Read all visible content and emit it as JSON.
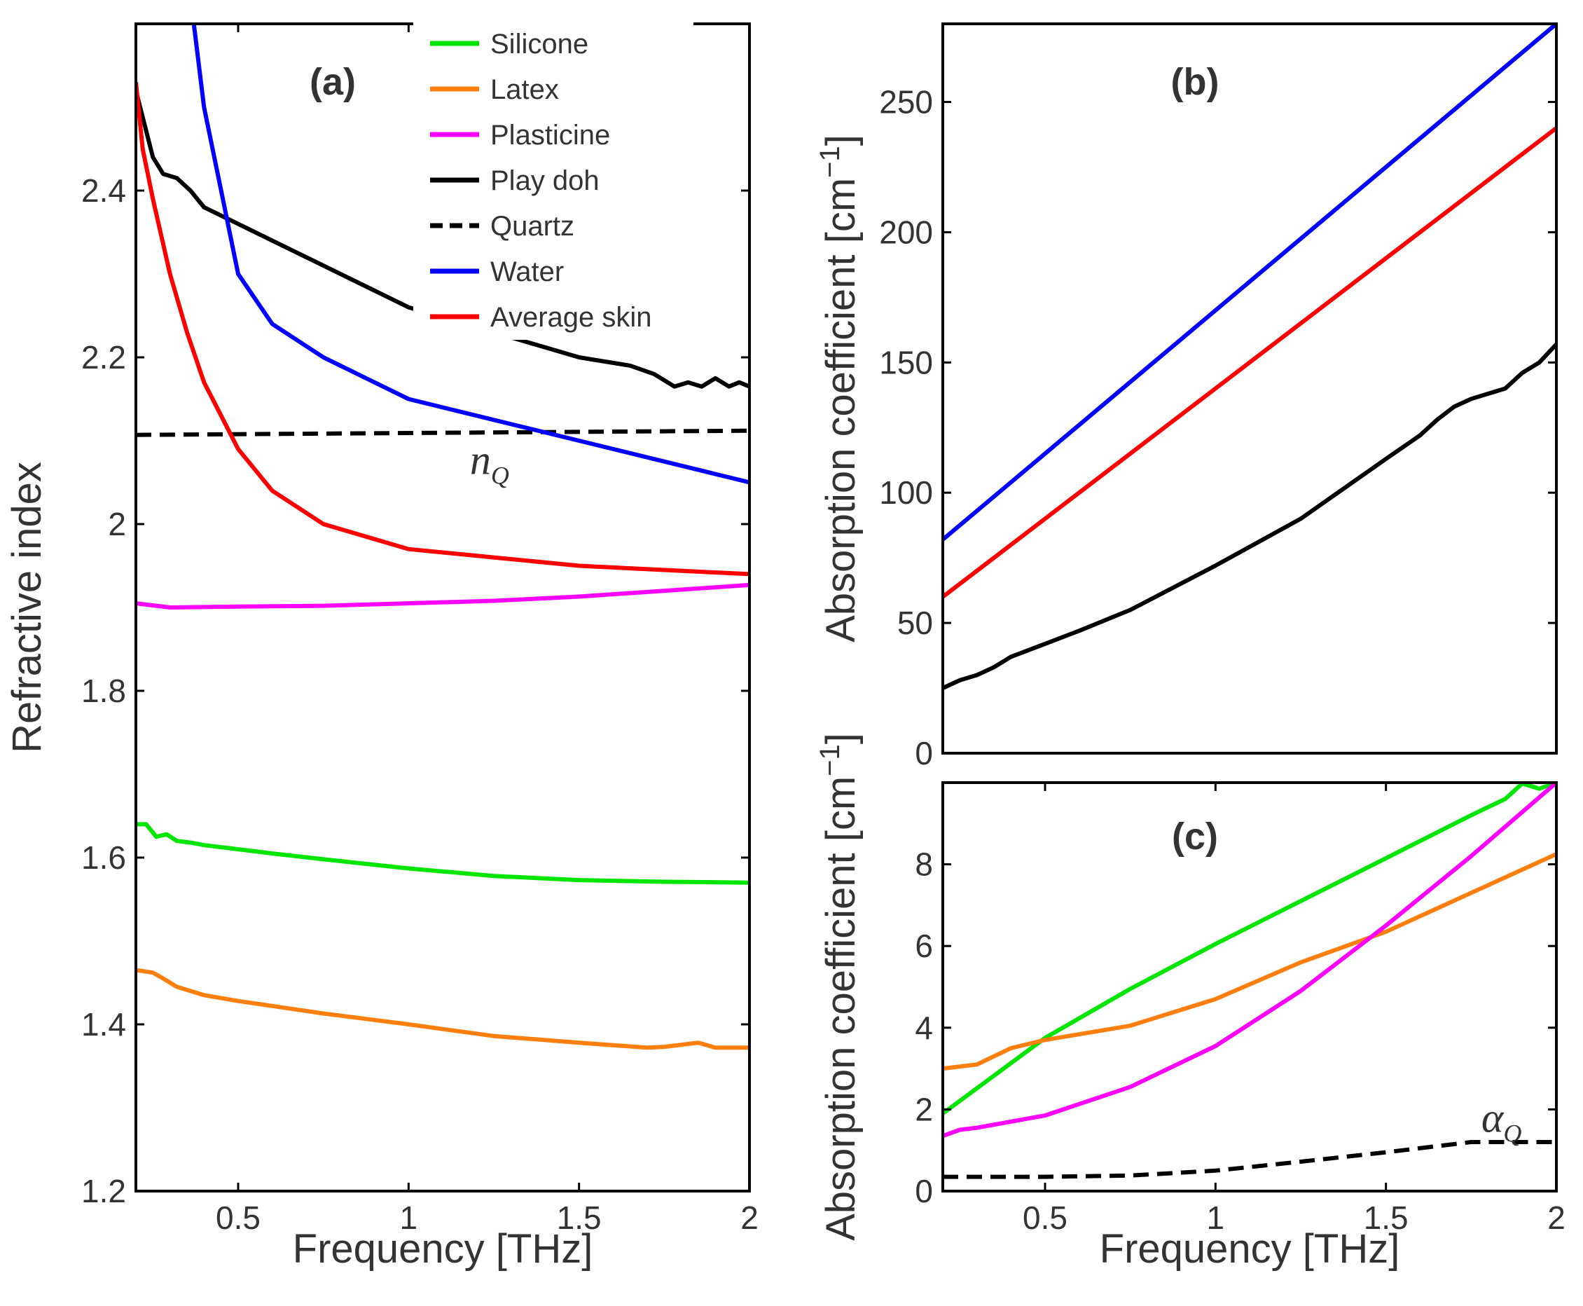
{
  "chart_data": [
    {
      "id": "a",
      "type": "line",
      "title": "(a)",
      "xlabel": "Frequency [THz]",
      "ylabel": "Refractive index",
      "xlim": [
        0.2,
        2.0
      ],
      "ylim": [
        1.2,
        2.6
      ],
      "xticks": [
        "0.5",
        "1",
        "1.5",
        "2"
      ],
      "yticks": [
        "1.2",
        "1.4",
        "1.6",
        "1.8",
        "2",
        "2.2",
        "2.4"
      ],
      "legend": {
        "position": "top-right",
        "entries": [
          "Silicone",
          "Latex",
          "Plasticine",
          "Play doh",
          "Quartz",
          "Water",
          "Average skin"
        ]
      },
      "annotation": {
        "text": "n",
        "subscript": "Q",
        "x": 1.18,
        "y": 2.06
      },
      "series": [
        {
          "name": "Silicone",
          "color": "#00e600",
          "dash": false,
          "x": [
            0.2,
            0.23,
            0.26,
            0.29,
            0.32,
            0.36,
            0.4,
            0.5,
            0.6,
            0.75,
            1.0,
            1.25,
            1.5,
            1.75,
            2.0
          ],
          "y": [
            1.64,
            1.64,
            1.625,
            1.628,
            1.62,
            1.618,
            1.615,
            1.61,
            1.605,
            1.598,
            1.587,
            1.578,
            1.573,
            1.571,
            1.57
          ]
        },
        {
          "name": "Latex",
          "color": "#ff7f0e",
          "dash": false,
          "x": [
            0.2,
            0.25,
            0.28,
            0.32,
            0.36,
            0.4,
            0.5,
            0.6,
            0.75,
            1.0,
            1.25,
            1.5,
            1.7,
            1.75,
            1.85,
            1.9,
            2.0
          ],
          "y": [
            1.465,
            1.462,
            1.455,
            1.445,
            1.44,
            1.435,
            1.428,
            1.422,
            1.413,
            1.4,
            1.386,
            1.378,
            1.372,
            1.373,
            1.378,
            1.372,
            1.372
          ]
        },
        {
          "name": "Plasticine",
          "color": "#ff00ff",
          "dash": false,
          "x": [
            0.2,
            0.3,
            0.5,
            0.75,
            1.0,
            1.25,
            1.5,
            1.75,
            2.0
          ],
          "y": [
            1.905,
            1.9,
            1.901,
            1.902,
            1.905,
            1.908,
            1.913,
            1.92,
            1.927
          ]
        },
        {
          "name": "Play doh",
          "color": "#000000",
          "dash": false,
          "x": [
            0.2,
            0.25,
            0.28,
            0.32,
            0.36,
            0.4,
            0.5,
            0.6,
            0.75,
            1.0,
            1.25,
            1.5,
            1.65,
            1.72,
            1.78,
            1.82,
            1.86,
            1.9,
            1.94,
            1.97,
            2.0
          ],
          "y": [
            2.52,
            2.44,
            2.42,
            2.415,
            2.4,
            2.38,
            2.36,
            2.34,
            2.31,
            2.26,
            2.23,
            2.2,
            2.19,
            2.18,
            2.165,
            2.17,
            2.165,
            2.175,
            2.165,
            2.17,
            2.165
          ]
        },
        {
          "name": "Quartz",
          "color": "#000000",
          "dash": true,
          "x": [
            0.2,
            2.0
          ],
          "y": [
            2.107,
            2.112
          ]
        },
        {
          "name": "Water",
          "color": "#0000ff",
          "dash": false,
          "x": [
            0.37,
            0.4,
            0.45,
            0.5,
            0.6,
            0.75,
            1.0,
            1.25,
            1.5,
            1.75,
            2.0
          ],
          "y": [
            2.6,
            2.5,
            2.4,
            2.3,
            2.24,
            2.2,
            2.15,
            2.125,
            2.1,
            2.075,
            2.05
          ]
        },
        {
          "name": "Average skin",
          "color": "#ff0000",
          "dash": false,
          "x": [
            0.2,
            0.22,
            0.25,
            0.3,
            0.35,
            0.4,
            0.45,
            0.5,
            0.6,
            0.75,
            1.0,
            1.25,
            1.5,
            1.75,
            2.0
          ],
          "y": [
            2.53,
            2.45,
            2.39,
            2.3,
            2.23,
            2.17,
            2.13,
            2.09,
            2.04,
            2.0,
            1.97,
            1.96,
            1.95,
            1.945,
            1.94
          ]
        }
      ]
    },
    {
      "id": "b",
      "type": "line",
      "title": "(b)",
      "xlabel": "",
      "ylabel": "Absorption coefficient [cm−1]",
      "xlim": [
        0.2,
        2.0
      ],
      "ylim": [
        0,
        280
      ],
      "xticks": [],
      "yticks": [
        "0",
        "50",
        "100",
        "150",
        "200",
        "250"
      ],
      "series": [
        {
          "name": "Water",
          "color": "#0000ff",
          "dash": false,
          "x": [
            0.2,
            2.0
          ],
          "y": [
            82,
            280
          ]
        },
        {
          "name": "Average skin",
          "color": "#ff0000",
          "dash": false,
          "x": [
            0.2,
            2.0
          ],
          "y": [
            60,
            240
          ]
        },
        {
          "name": "Play doh",
          "color": "#000000",
          "dash": false,
          "x": [
            0.2,
            0.25,
            0.3,
            0.35,
            0.4,
            0.5,
            0.6,
            0.75,
            1.0,
            1.25,
            1.5,
            1.6,
            1.65,
            1.7,
            1.75,
            1.8,
            1.85,
            1.9,
            1.95,
            2.0
          ],
          "y": [
            25,
            28,
            30,
            33,
            37,
            42,
            47,
            55,
            72,
            90,
            113,
            122,
            128,
            133,
            136,
            138,
            140,
            146,
            150,
            157
          ]
        }
      ]
    },
    {
      "id": "c",
      "type": "line",
      "title": "(c)",
      "xlabel": "Frequency [THz]",
      "ylabel": "Absorption coefficient [cm−1]",
      "xlim": [
        0.2,
        2.0
      ],
      "ylim": [
        0,
        10
      ],
      "xticks": [
        "0.5",
        "1",
        "1.5",
        "2"
      ],
      "yticks": [
        "0",
        "2",
        "4",
        "6",
        "8"
      ],
      "annotation": {
        "text": "α",
        "subscript": "Q",
        "x": 1.78,
        "y": 1.45
      },
      "series": [
        {
          "name": "Silicone",
          "color": "#00e600",
          "dash": false,
          "x": [
            0.2,
            0.5,
            0.75,
            1.0,
            1.25,
            1.5,
            1.75,
            1.85,
            1.9,
            1.95,
            2.0
          ],
          "y": [
            1.9,
            3.75,
            4.95,
            6.05,
            7.1,
            8.15,
            9.2,
            9.6,
            9.98,
            9.85,
            10.0
          ]
        },
        {
          "name": "Latex",
          "color": "#ff7f0e",
          "dash": false,
          "x": [
            0.2,
            0.3,
            0.4,
            0.5,
            0.75,
            1.0,
            1.25,
            1.5,
            1.75,
            2.0
          ],
          "y": [
            3.0,
            3.1,
            3.5,
            3.7,
            4.05,
            4.7,
            5.6,
            6.35,
            7.3,
            8.25
          ]
        },
        {
          "name": "Plasticine",
          "color": "#ff00ff",
          "dash": false,
          "x": [
            0.2,
            0.25,
            0.3,
            0.5,
            0.75,
            1.0,
            1.25,
            1.5,
            1.75,
            2.0
          ],
          "y": [
            1.35,
            1.5,
            1.55,
            1.85,
            2.55,
            3.55,
            4.9,
            6.5,
            8.2,
            10.0
          ]
        },
        {
          "name": "Quartz",
          "color": "#000000",
          "dash": true,
          "x": [
            0.2,
            0.5,
            0.75,
            1.0,
            1.25,
            1.5,
            1.75,
            2.0
          ],
          "y": [
            0.35,
            0.35,
            0.38,
            0.5,
            0.72,
            0.95,
            1.2,
            1.2
          ]
        }
      ]
    }
  ]
}
